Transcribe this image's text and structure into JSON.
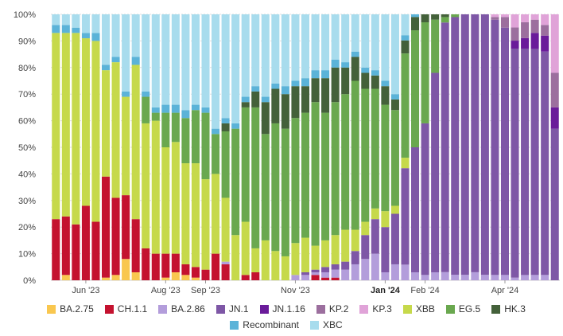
{
  "chart_data": {
    "type": "bar",
    "stacked": true,
    "title": "",
    "xlabel": "",
    "ylabel": "",
    "ylim": [
      0,
      100
    ],
    "y_ticks": [
      0,
      10,
      20,
      30,
      40,
      50,
      60,
      70,
      80,
      90,
      100
    ],
    "y_tick_labels": [
      "0%",
      "10%",
      "20%",
      "30%",
      "40%",
      "50%",
      "60%",
      "70%",
      "80%",
      "90%",
      "100%"
    ],
    "x_tick_labels": [
      {
        "label": "Jun '23",
        "index": 3,
        "bold": false
      },
      {
        "label": "Aug '23",
        "index": 11,
        "bold": false
      },
      {
        "label": "Sep '23",
        "index": 15,
        "bold": false
      },
      {
        "label": "Nov '23",
        "index": 24,
        "bold": false
      },
      {
        "label": "Jan '24",
        "index": 33,
        "bold": true
      },
      {
        "label": "Feb '24",
        "index": 37,
        "bold": false
      },
      {
        "label": "Apr '24",
        "index": 45,
        "bold": false
      }
    ],
    "categories": [
      "1",
      "2",
      "3",
      "4",
      "5",
      "6",
      "7",
      "8",
      "9",
      "10",
      "11",
      "12",
      "13",
      "14",
      "15",
      "16",
      "17",
      "18",
      "19",
      "20",
      "21",
      "22",
      "23",
      "24",
      "25",
      "26",
      "27",
      "28",
      "29",
      "30",
      "31",
      "32",
      "33",
      "34",
      "35",
      "36",
      "37",
      "38",
      "39",
      "40",
      "41",
      "42",
      "43",
      "44",
      "45",
      "46",
      "47",
      "48",
      "49",
      "50",
      "51"
    ],
    "series": [
      {
        "name": "BA.2.75",
        "color": "#f9c74f",
        "values": [
          0,
          2,
          0,
          0,
          0,
          1,
          2,
          8,
          3,
          0,
          0,
          1,
          3,
          2,
          1,
          0,
          0,
          0,
          0,
          0,
          0,
          0,
          0,
          0,
          0,
          0,
          0,
          0,
          0,
          0,
          0,
          0,
          0,
          0,
          0,
          0,
          0,
          0,
          0,
          0,
          0,
          0,
          0,
          0,
          0,
          0,
          0,
          0,
          0,
          0,
          0
        ]
      },
      {
        "name": "CH.1.1",
        "color": "#c4122f",
        "values": [
          23,
          22,
          21,
          28,
          22,
          38,
          29,
          24,
          20,
          12,
          10,
          9,
          7,
          4,
          4,
          4,
          10,
          6,
          0,
          2,
          3,
          0,
          0,
          0,
          0,
          0,
          2,
          1,
          1,
          0,
          0,
          0,
          0,
          0,
          0,
          0,
          0,
          0,
          0,
          0,
          0,
          0,
          0,
          0,
          0,
          0,
          0,
          0,
          0,
          0,
          0
        ]
      },
      {
        "name": "BA.2.86",
        "color": "#b39ddb",
        "values": [
          0,
          0,
          0,
          0,
          0,
          0,
          0,
          0,
          0,
          0,
          0,
          0,
          0,
          0,
          0,
          0,
          0,
          1,
          0,
          0,
          0,
          0,
          0,
          0,
          2,
          2,
          1,
          2,
          3,
          4,
          6,
          8,
          10,
          3,
          6,
          6,
          3,
          2,
          3,
          3,
          2,
          2,
          3,
          2,
          2,
          2,
          1,
          2,
          2,
          2,
          0
        ]
      },
      {
        "name": "JN.1",
        "color": "#7e57a6",
        "values": [
          0,
          0,
          0,
          0,
          0,
          0,
          0,
          0,
          0,
          0,
          0,
          0,
          0,
          0,
          0,
          0,
          0,
          0,
          0,
          0,
          0,
          0,
          0,
          0,
          0,
          1,
          1,
          2,
          2,
          3,
          5,
          9,
          13,
          17,
          19,
          37,
          47,
          57,
          75,
          92,
          93,
          96,
          96,
          96,
          96,
          93,
          87,
          86,
          85,
          84,
          57
        ]
      },
      {
        "name": "JN.1.16",
        "color": "#6a1b9a",
        "values": [
          0,
          0,
          0,
          0,
          0,
          0,
          0,
          0,
          0,
          0,
          0,
          0,
          0,
          0,
          0,
          0,
          0,
          0,
          0,
          0,
          0,
          0,
          0,
          0,
          0,
          0,
          0,
          0,
          0,
          0,
          0,
          0,
          0,
          0,
          0,
          0,
          0,
          0,
          0,
          0,
          0,
          0,
          0,
          0,
          0,
          0,
          3,
          4,
          6,
          6,
          8
        ]
      },
      {
        "name": "KP.2",
        "color": "#9c6f9e",
        "values": [
          0,
          0,
          0,
          0,
          0,
          0,
          0,
          0,
          0,
          0,
          0,
          0,
          0,
          0,
          0,
          0,
          0,
          0,
          0,
          0,
          0,
          0,
          0,
          0,
          0,
          0,
          0,
          0,
          0,
          0,
          0,
          0,
          0,
          0,
          0,
          0,
          0,
          0,
          0,
          0,
          0,
          0,
          0,
          0,
          1,
          4,
          5,
          6,
          5,
          4,
          13
        ]
      },
      {
        "name": "KP.3",
        "color": "#e0a3d8",
        "values": [
          0,
          0,
          0,
          0,
          0,
          0,
          0,
          0,
          0,
          0,
          0,
          0,
          0,
          0,
          0,
          0,
          0,
          0,
          0,
          0,
          0,
          0,
          0,
          0,
          0,
          0,
          0,
          0,
          0,
          0,
          0,
          0,
          0,
          0,
          0,
          0,
          0,
          0,
          0,
          0,
          0,
          0,
          0,
          0,
          1,
          1,
          5,
          3,
          2,
          4,
          22
        ]
      },
      {
        "name": "XBB",
        "color": "#c6d94b",
        "values": [
          70,
          69,
          72,
          63,
          68,
          40,
          51,
          37,
          58,
          47,
          50,
          40,
          42,
          38,
          39,
          34,
          30,
          24,
          17,
          20,
          9,
          15,
          11,
          9,
          12,
          13,
          9,
          10,
          11,
          12,
          8,
          5,
          4,
          6,
          3,
          4,
          0,
          0,
          0,
          0,
          0,
          0,
          0,
          0,
          0,
          0,
          0,
          0,
          0,
          0,
          0
        ]
      },
      {
        "name": "EG.5",
        "color": "#6aa84f",
        "values": [
          0,
          0,
          0,
          0,
          0,
          0,
          0,
          0,
          0,
          10,
          3,
          13,
          11,
          17,
          20,
          25,
          15,
          25,
          40,
          43,
          53,
          40,
          48,
          48,
          47,
          47,
          54,
          48,
          50,
          51,
          56,
          50,
          45,
          40,
          36,
          40,
          44,
          38,
          20,
          2,
          1,
          0,
          0,
          0,
          0,
          0,
          0,
          0,
          0,
          0,
          0
        ]
      },
      {
        "name": "HK.3",
        "color": "#44613a",
        "values": [
          0,
          0,
          0,
          0,
          0,
          0,
          0,
          0,
          0,
          0,
          0,
          0,
          0,
          0,
          0,
          0,
          0,
          3,
          0,
          2,
          6,
          12,
          13,
          13,
          12,
          10,
          9,
          13,
          13,
          10,
          9,
          6,
          5,
          7,
          4,
          5,
          5,
          3,
          2,
          1,
          0,
          0,
          0,
          0,
          0,
          0,
          0,
          0,
          0,
          0,
          0
        ]
      },
      {
        "name": "Recombinant",
        "color": "#5bb3d8",
        "values": [
          3,
          3,
          2,
          2,
          3,
          2,
          2,
          2,
          3,
          2,
          2,
          3,
          3,
          3,
          2,
          2,
          2,
          2,
          2,
          2,
          2,
          2,
          2,
          3,
          2,
          3,
          3,
          3,
          3,
          2,
          2,
          2,
          2,
          2,
          2,
          2,
          1,
          0,
          0,
          0,
          0,
          0,
          0,
          0,
          0,
          0,
          0,
          0,
          0,
          0,
          0
        ]
      },
      {
        "name": "XBC",
        "color": "#a8dced",
        "values": [
          4,
          4,
          5,
          7,
          7,
          19,
          16,
          29,
          16,
          29,
          35,
          34,
          34,
          36,
          34,
          35,
          43,
          39,
          41,
          31,
          27,
          31,
          26,
          27,
          25,
          24,
          21,
          21,
          17,
          18,
          14,
          20,
          21,
          25,
          30,
          8,
          0,
          0,
          0,
          0,
          0,
          0,
          0,
          0,
          0,
          0,
          0,
          0,
          0,
          0,
          0
        ]
      }
    ],
    "legend": [
      "BA.2.75",
      "CH.1.1",
      "BA.2.86",
      "JN.1",
      "JN.1.16",
      "KP.2",
      "KP.3",
      "XBB",
      "EG.5",
      "HK.3",
      "Recombinant",
      "XBC"
    ],
    "legend_position": "bottom"
  }
}
